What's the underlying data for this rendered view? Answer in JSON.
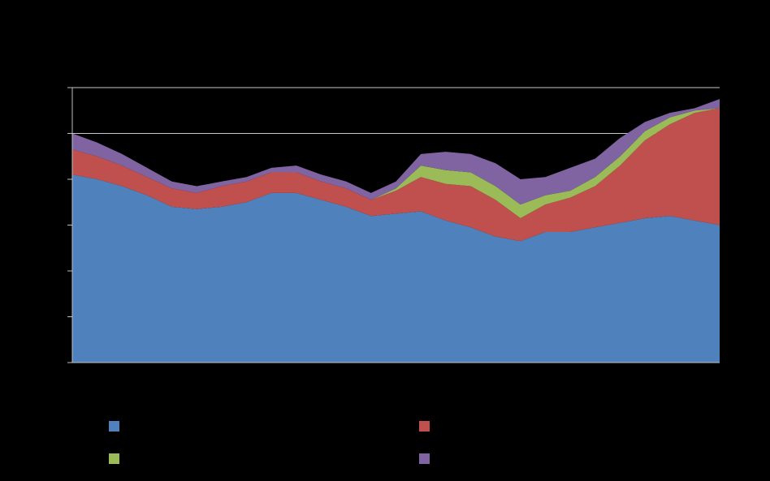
{
  "chart_data": {
    "type": "area",
    "stacked": true,
    "title": "",
    "xlabel": "",
    "ylabel": "",
    "x": [
      1,
      2,
      3,
      4,
      5,
      6,
      7,
      8,
      9,
      10,
      11,
      12,
      13,
      14,
      15,
      16,
      17,
      18,
      19,
      20,
      21,
      22,
      23,
      24,
      25,
      26,
      27
    ],
    "ylim": [
      0,
      120
    ],
    "gridlines": [
      100,
      120
    ],
    "grid": true,
    "legend_position": "bottom",
    "series": [
      {
        "color": "#4f81bd",
        "values": [
          82,
          80,
          77,
          73,
          68,
          67,
          68,
          70,
          74,
          74,
          71,
          68,
          64,
          65,
          66,
          62,
          59,
          55,
          53,
          57,
          57,
          59,
          61,
          63,
          64,
          62,
          60
        ]
      },
      {
        "color": "#c0504d",
        "values": [
          11,
          10,
          9,
          8,
          8,
          7,
          9,
          9,
          9,
          9,
          8,
          8,
          7,
          10,
          15,
          16,
          18,
          16,
          10,
          12,
          15,
          18,
          25,
          34,
          40,
          47,
          51
        ]
      },
      {
        "color": "#9bbb59",
        "values": [
          0,
          0,
          0,
          0,
          0,
          0,
          0,
          0,
          0,
          0,
          0,
          0,
          0,
          1,
          5,
          6,
          6,
          6,
          6,
          4,
          3,
          4,
          4,
          4,
          3,
          1,
          0
        ]
      },
      {
        "color": "#8064a2",
        "values": [
          7,
          6,
          5,
          4,
          3,
          3,
          2,
          2,
          2,
          3,
          3,
          3,
          3,
          3,
          5,
          8,
          8,
          10,
          11,
          8,
          10,
          8,
          8,
          4,
          2,
          1,
          4
        ]
      }
    ]
  },
  "legend": {
    "items": [
      {
        "label": "",
        "color": "#4f81bd"
      },
      {
        "label": "",
        "color": "#c0504d"
      },
      {
        "label": "",
        "color": "#9bbb59"
      },
      {
        "label": "",
        "color": "#8064a2"
      }
    ]
  }
}
